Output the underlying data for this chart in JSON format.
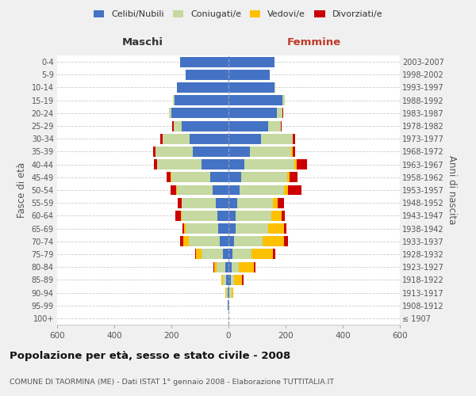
{
  "age_groups": [
    "100+",
    "95-99",
    "90-94",
    "85-89",
    "80-84",
    "75-79",
    "70-74",
    "65-69",
    "60-64",
    "55-59",
    "50-54",
    "45-49",
    "40-44",
    "35-39",
    "30-34",
    "25-29",
    "20-24",
    "15-19",
    "10-14",
    "5-9",
    "0-4"
  ],
  "birth_years": [
    "≤ 1907",
    "1908-1912",
    "1913-1917",
    "1918-1922",
    "1923-1927",
    "1928-1932",
    "1933-1937",
    "1938-1942",
    "1943-1947",
    "1948-1952",
    "1953-1957",
    "1958-1962",
    "1963-1967",
    "1968-1972",
    "1973-1977",
    "1978-1982",
    "1983-1987",
    "1988-1992",
    "1993-1997",
    "1998-2002",
    "2003-2007"
  ],
  "maschi": {
    "celibi": [
      0,
      2,
      4,
      8,
      12,
      20,
      30,
      35,
      38,
      45,
      55,
      65,
      95,
      125,
      135,
      165,
      200,
      190,
      180,
      150,
      170
    ],
    "coniugati": [
      0,
      1,
      4,
      12,
      30,
      75,
      110,
      115,
      125,
      120,
      125,
      135,
      155,
      130,
      95,
      28,
      8,
      4,
      0,
      0,
      0
    ],
    "vedovi": [
      0,
      0,
      2,
      4,
      8,
      18,
      18,
      6,
      4,
      0,
      4,
      4,
      0,
      0,
      0,
      0,
      0,
      0,
      0,
      0,
      0
    ],
    "divorziati": [
      0,
      0,
      0,
      0,
      4,
      4,
      12,
      6,
      18,
      14,
      18,
      12,
      12,
      8,
      8,
      4,
      0,
      0,
      0,
      0,
      0
    ]
  },
  "femmine": {
    "nubili": [
      0,
      1,
      4,
      8,
      10,
      15,
      20,
      25,
      25,
      30,
      40,
      45,
      55,
      75,
      115,
      140,
      170,
      190,
      160,
      145,
      160
    ],
    "coniugate": [
      0,
      1,
      6,
      12,
      25,
      65,
      100,
      115,
      125,
      125,
      155,
      160,
      175,
      145,
      110,
      42,
      18,
      8,
      4,
      0,
      0
    ],
    "vedove": [
      0,
      2,
      6,
      28,
      55,
      75,
      75,
      55,
      35,
      18,
      12,
      8,
      8,
      4,
      0,
      0,
      0,
      0,
      0,
      0,
      0
    ],
    "divorziate": [
      0,
      0,
      0,
      4,
      4,
      8,
      12,
      8,
      12,
      22,
      48,
      28,
      38,
      8,
      8,
      4,
      4,
      0,
      0,
      0,
      0
    ]
  },
  "colors": {
    "celibi": "#4472c4",
    "coniugati": "#c5d9a0",
    "vedovi": "#ffc000",
    "divorziati": "#cc0000"
  },
  "xlim": 600,
  "title": "Popolazione per età, sesso e stato civile - 2008",
  "subtitle": "COMUNE DI TAORMINA (ME) - Dati ISTAT 1° gennaio 2008 - Elaborazione TUTTITALIA.IT",
  "ylabel_left": "Fasce di età",
  "ylabel_right": "Anni di nascita",
  "xlabel_maschi": "Maschi",
  "xlabel_femmine": "Femmine",
  "bg_color": "#f0f0f0",
  "plot_bg": "#ffffff"
}
